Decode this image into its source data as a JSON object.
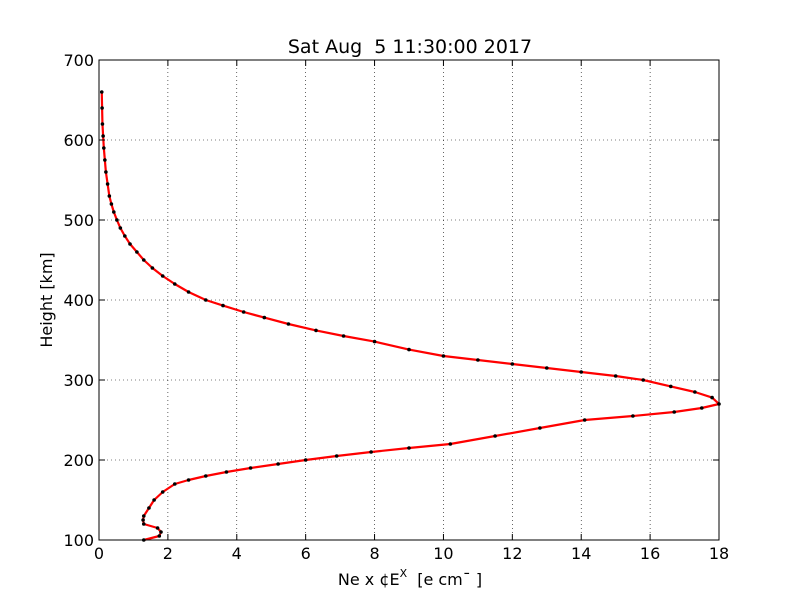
{
  "chart_data": {
    "type": "line",
    "title": "Sat Aug  5 11:30:00 2017",
    "xlabel": {
      "main": "Ne x ¢E",
      "superscript": "X",
      "units": "[e cm¯ ]"
    },
    "ylabel": "Height [km]",
    "xlim": [
      0,
      18
    ],
    "ylim": [
      100,
      700
    ],
    "xticks": [
      "0",
      "2",
      "4",
      "6",
      "8",
      "10",
      "12",
      "14",
      "16",
      "18"
    ],
    "yticks": [
      "100",
      "200",
      "300",
      "400",
      "500",
      "600",
      "700"
    ],
    "grid": true,
    "line_color": "#ff0000",
    "marker_color": "#000000",
    "series": [
      {
        "x": [
          1.3,
          1.75,
          1.8,
          1.7,
          1.3,
          1.28,
          1.3,
          1.45,
          1.6,
          1.85,
          2.2,
          2.6,
          3.1,
          3.7,
          4.4,
          5.2,
          6.0,
          6.9,
          7.9,
          9.0,
          10.2,
          11.5,
          12.8,
          14.1,
          15.5,
          16.7,
          17.5,
          18.0,
          17.8,
          17.3,
          16.6,
          15.8,
          15.0,
          14.0,
          13.0,
          12.0,
          11.0,
          10.0,
          9.0,
          8.0,
          7.1,
          6.3,
          5.5,
          4.8,
          4.2,
          3.6,
          3.1,
          2.6,
          2.2,
          1.85,
          1.55,
          1.3,
          1.1,
          0.9,
          0.75,
          0.62,
          0.52,
          0.43,
          0.36,
          0.3,
          0.25,
          0.2,
          0.17,
          0.14,
          0.12,
          0.1,
          0.09,
          0.08
        ],
        "y": [
          100,
          105,
          110,
          115,
          120,
          125,
          130,
          140,
          150,
          160,
          170,
          175,
          180,
          185,
          190,
          195,
          200,
          205,
          210,
          215,
          220,
          230,
          240,
          250,
          255,
          260,
          265,
          270,
          278,
          285,
          292,
          300,
          305,
          310,
          315,
          320,
          325,
          330,
          338,
          348,
          355,
          362,
          370,
          378,
          385,
          393,
          400,
          410,
          420,
          430,
          440,
          450,
          460,
          470,
          480,
          490,
          500,
          510,
          520,
          530,
          545,
          560,
          575,
          590,
          605,
          620,
          640,
          660
        ]
      }
    ]
  }
}
